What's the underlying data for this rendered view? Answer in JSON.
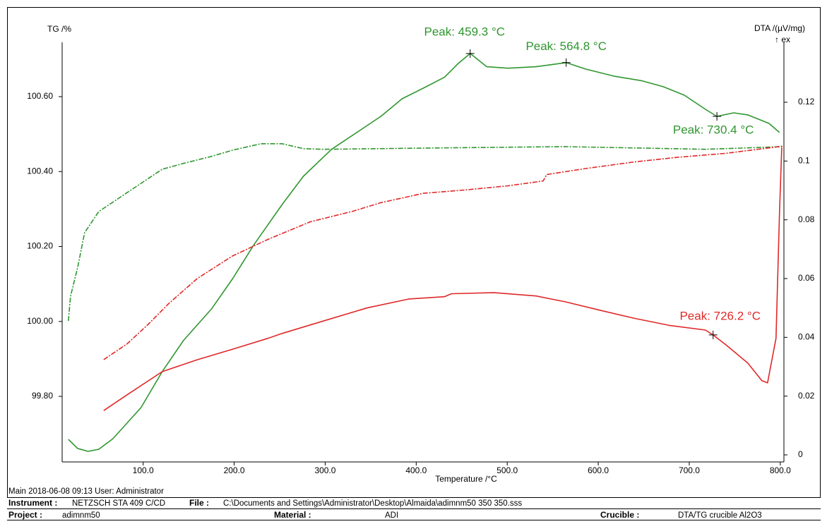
{
  "chart_data": {
    "type": "line",
    "x_label": "Temperature /°C",
    "y_label": "TG /%",
    "y2_label": "DTA /(µV/mg)",
    "y2_note": "↑ ex",
    "xlim": [
      11,
      804
    ],
    "ylim": [
      99.625,
      100.745
    ],
    "y2lim": [
      -0.0024,
      0.1404
    ],
    "xticks": [
      {
        "value": 100,
        "label": "100.0"
      },
      {
        "value": 200,
        "label": "200.0"
      },
      {
        "value": 300,
        "label": "300.0"
      },
      {
        "value": 400,
        "label": "400.0"
      },
      {
        "value": 500,
        "label": "500.0"
      },
      {
        "value": 600,
        "label": "600.0"
      },
      {
        "value": 700,
        "label": "700.0"
      },
      {
        "value": 800,
        "label": "800.0"
      }
    ],
    "yticks": [
      {
        "value": 99.8,
        "label": "99.80"
      },
      {
        "value": 100,
        "label": "100.00"
      },
      {
        "value": 100.2,
        "label": "100.20"
      },
      {
        "value": 100.4,
        "label": "100.40"
      },
      {
        "value": 100.6,
        "label": "100.60"
      }
    ],
    "y2ticks": [
      0,
      0.02,
      0.04,
      0.06,
      0.08,
      0.1,
      0.12
    ],
    "series": [
      {
        "color": "#2f962f",
        "style": "solid",
        "axis": "y2",
        "x": [
          17.8,
          27.9,
          39.5,
          51.2,
          66.7,
          82.2,
          97.7,
          120.9,
          144.2,
          175.2,
          198.4,
          221.7,
          252.7,
          276.0,
          307.0,
          338.0,
          361.2,
          384.5,
          407.8,
          431.0,
          446.5,
          459.3,
          477.5,
          500.8,
          531.8,
          564.8,
          586.0,
          617.1,
          648.1,
          671.3,
          694.6,
          717.8,
          730.4,
          748.8,
          764.3,
          787.6,
          799.2
        ],
        "values": [
          0.0053,
          0.0022,
          0.0012,
          0.0019,
          0.0055,
          0.0108,
          0.0161,
          0.0283,
          0.0389,
          0.0497,
          0.06,
          0.0715,
          0.0852,
          0.0948,
          0.104,
          0.1104,
          0.1152,
          0.1212,
          0.1248,
          0.1285,
          0.1333,
          0.1366,
          0.1321,
          0.1316,
          0.1321,
          0.1335,
          0.1313,
          0.1289,
          0.1273,
          0.1253,
          0.1224,
          0.1176,
          0.1152,
          0.1164,
          0.1157,
          0.1128,
          0.1097
        ]
      },
      {
        "color": "#2f962f",
        "style": "dashdot",
        "axis": "y2",
        "x": [
          17.8,
          20.2,
          27.9,
          35.7,
          51.2,
          74.4,
          97.7,
          120.9,
          144.2,
          175.2,
          198.4,
          229.5,
          252.7,
          276.0,
          299.2,
          407.8,
          562.8,
          717.8,
          803.1
        ],
        "values": [
          0.0456,
          0.054,
          0.0636,
          0.0756,
          0.0828,
          0.0876,
          0.0924,
          0.0972,
          0.0992,
          0.1016,
          0.1037,
          0.1059,
          0.1059,
          0.1042,
          0.104,
          0.1044,
          0.1049,
          0.104,
          0.1049
        ]
      },
      {
        "color": "#e02828",
        "style": "dashdot",
        "axis": "y",
        "x": [
          56.6,
          82.2,
          105.4,
          128.7,
          159.7,
          198.4,
          237.2,
          283.7,
          330.2,
          361.2,
          407.8,
          454.3,
          500.8,
          539.5,
          543.4,
          586.0,
          640.3,
          686.8,
          741.1,
          803.1
        ],
        "values": [
          99.898,
          99.94,
          99.992,
          100.049,
          100.115,
          100.175,
          100.219,
          100.266,
          100.294,
          100.317,
          100.342,
          100.351,
          100.362,
          100.375,
          100.392,
          100.408,
          100.426,
          100.438,
          100.449,
          100.468
        ]
      },
      {
        "color": "#e02828",
        "style": "solid",
        "axis": "y",
        "x": [
          56.6,
          82.2,
          120.9,
          159.7,
          198.4,
          237.2,
          252.7,
          299.2,
          345.7,
          392.2,
          431.0,
          438.8,
          485.3,
          531.8,
          562.8,
          601.6,
          640.3,
          679.1,
          717.8,
          726.2,
          741.1,
          764.3,
          779.8,
          786.0,
          795.3,
          799.2,
          800.8,
          801.6
        ],
        "values": [
          99.762,
          99.804,
          99.866,
          99.898,
          99.926,
          99.955,
          99.968,
          100.002,
          100.036,
          100.06,
          100.066,
          100.074,
          100.077,
          100.068,
          100.053,
          100.03,
          100.008,
          99.989,
          99.977,
          99.964,
          99.936,
          99.889,
          99.842,
          99.836,
          99.955,
          100.294,
          100.408,
          100.464
        ]
      }
    ],
    "annotations": [
      {
        "text": "Peak: 459.3 °C",
        "x": 459.3,
        "y": 0.1366,
        "axis": "y2",
        "color": "#2f962f"
      },
      {
        "text": "Peak: 564.8 °C",
        "x": 564.8,
        "y": 0.1335,
        "axis": "y2",
        "color": "#2f962f"
      },
      {
        "text": "Peak: 730.4 °C",
        "x": 730.4,
        "y": 0.1152,
        "axis": "y2",
        "color": "#2f962f"
      },
      {
        "text": "Peak: 726.2 °C",
        "x": 726.2,
        "y": 99.964,
        "axis": "y",
        "color": "#e02828"
      }
    ]
  },
  "footer": {
    "main": "Main   2018-06-08 09:13    User: Administrator",
    "instrument_label": "Instrument :",
    "instrument": "NETZSCH STA 409 C/CD",
    "file_label": "File :",
    "file": "C:\\Documents and Settings\\Administrator\\Desktop\\Almaida\\adimnm50 350 350.sss",
    "project_label": "Project :",
    "project": "adimnm50",
    "material_label": "Material :",
    "material": "ADI",
    "crucible_label": "Crucible :",
    "crucible": "DTA/TG crucible Al2O3"
  }
}
